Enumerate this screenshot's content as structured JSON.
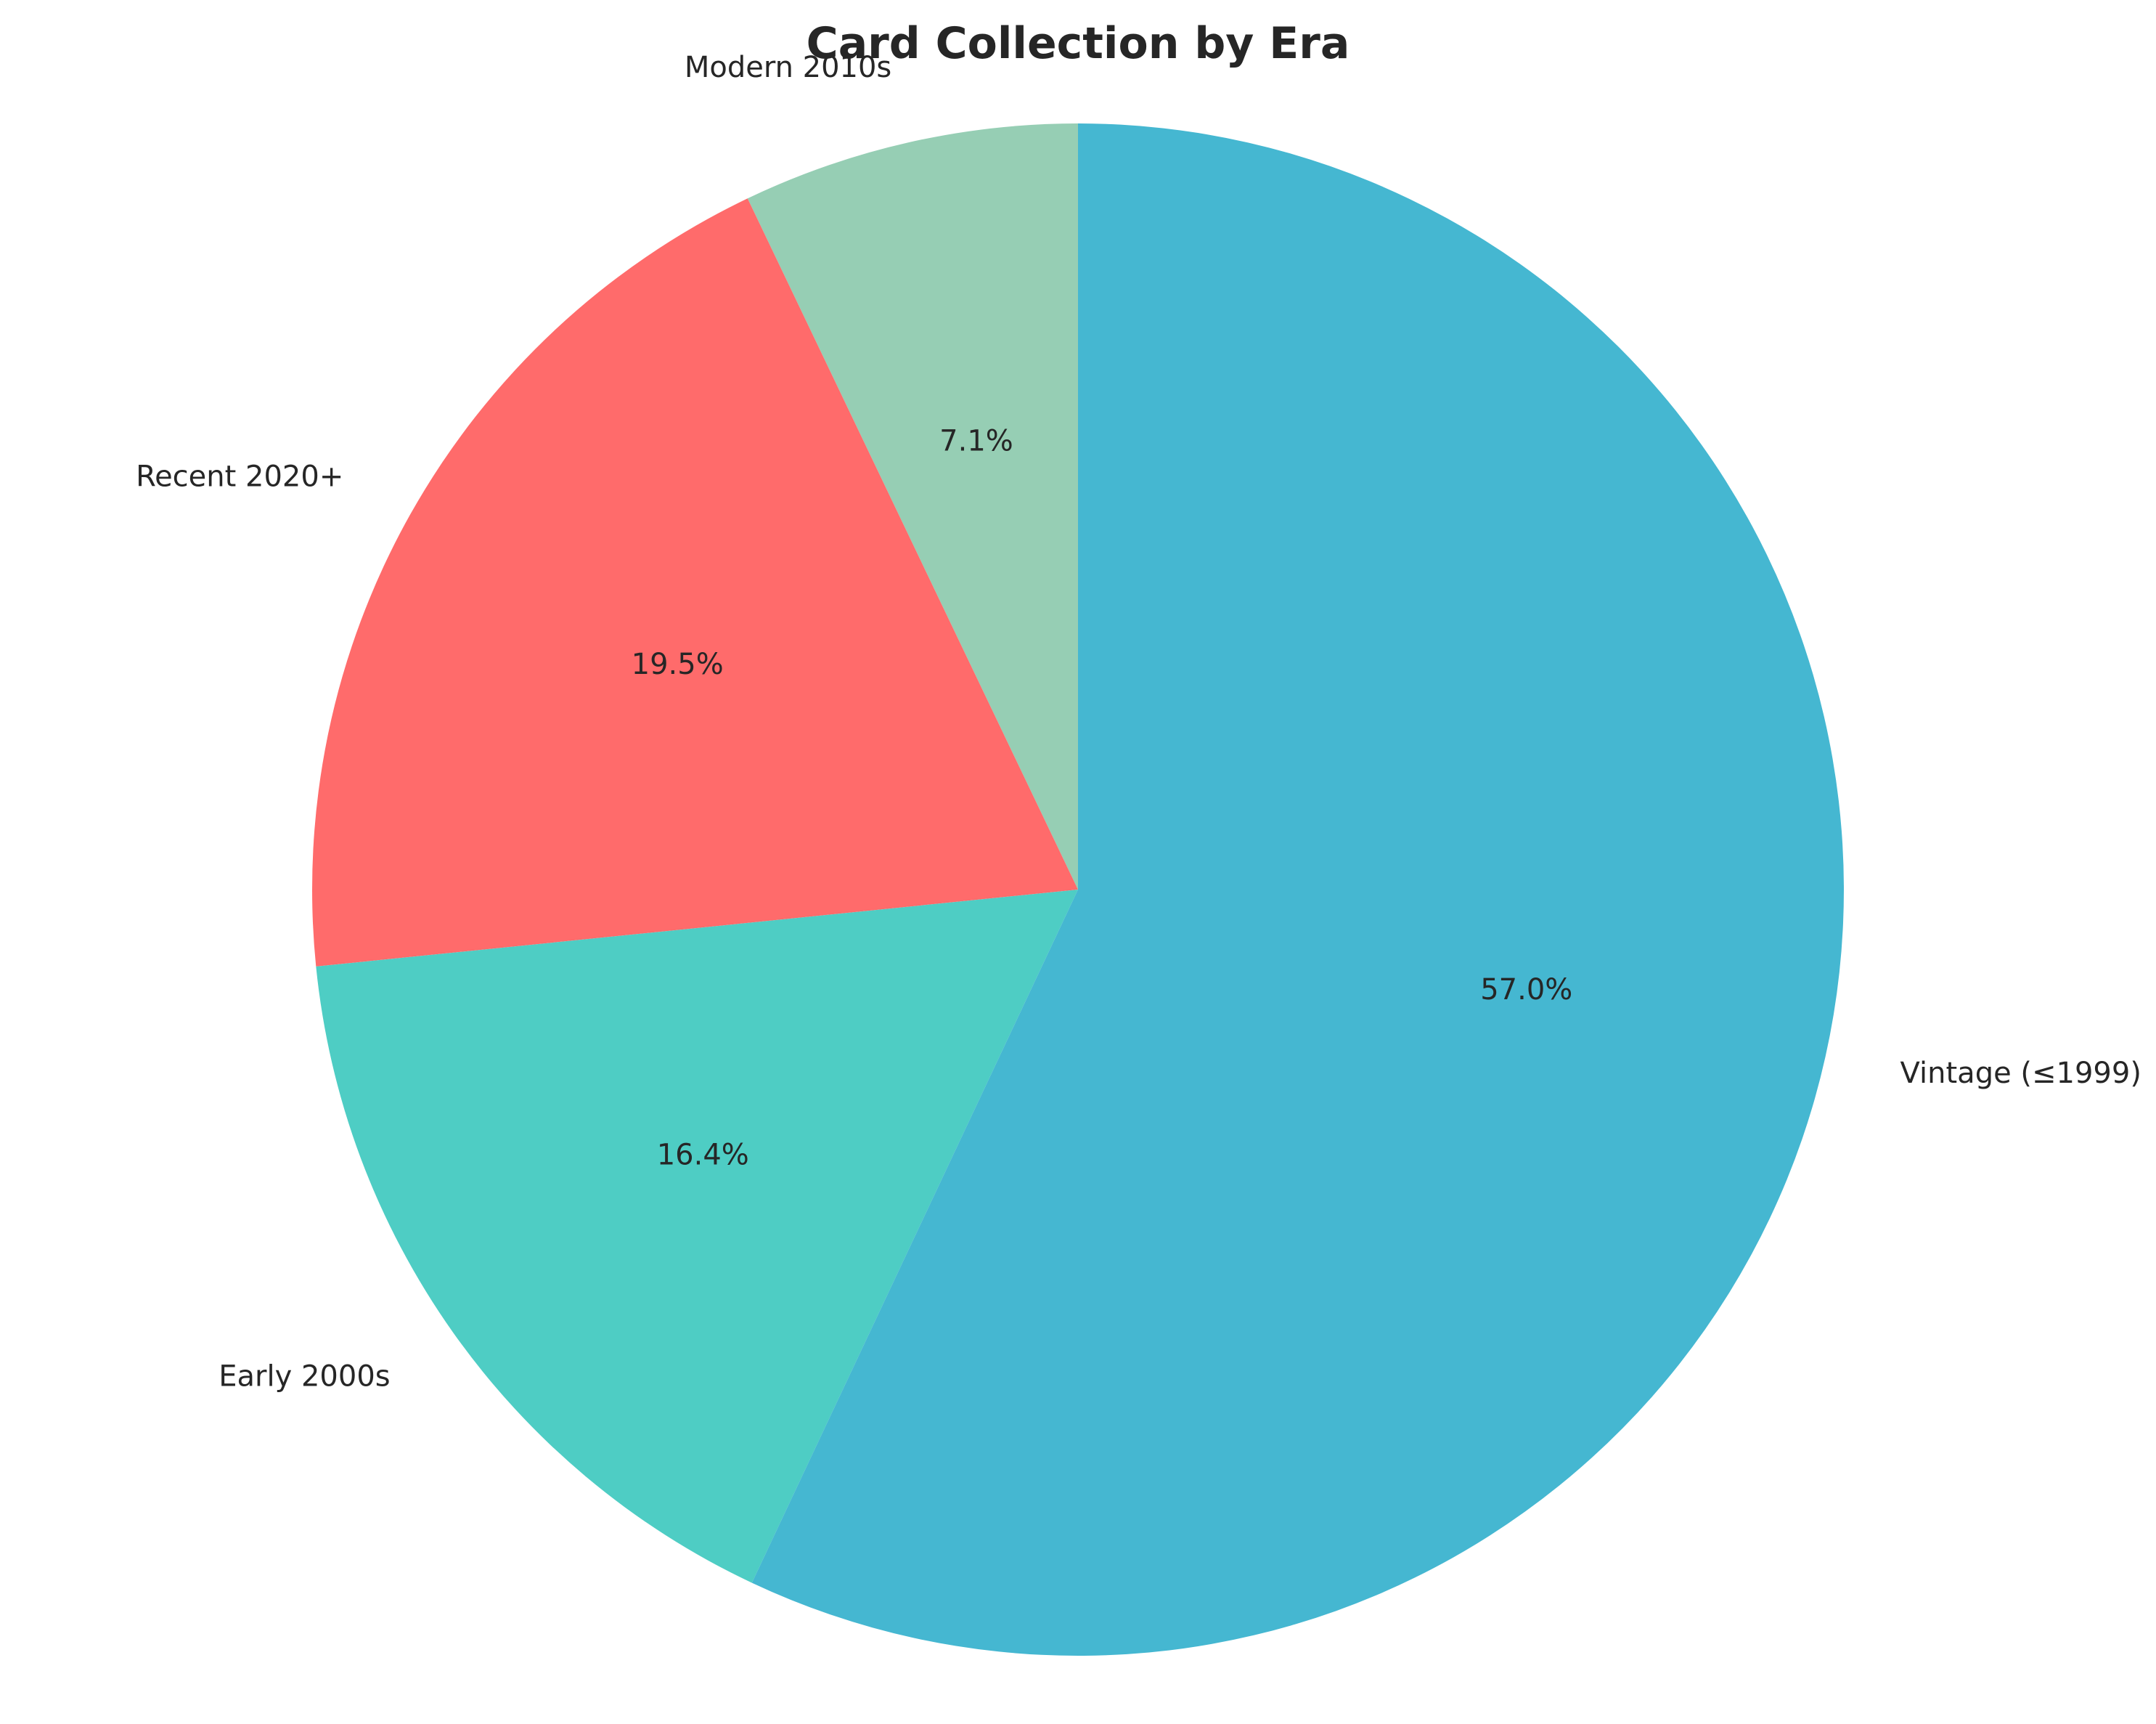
{
  "chart_data": {
    "type": "pie",
    "title": "Card Collection by Era",
    "start_angle_deg": 90,
    "direction": "counterclockwise",
    "slices": [
      {
        "label": "Modern 2010s",
        "value": 7.1,
        "pct_label": "7.1%",
        "color": "#96CEB4"
      },
      {
        "label": "Recent 2020+",
        "value": 19.5,
        "pct_label": "19.5%",
        "color": "#FF6B6B"
      },
      {
        "label": "Early 2000s",
        "value": 16.4,
        "pct_label": "16.4%",
        "color": "#4ECDC4"
      },
      {
        "label": "Vintage (≤1999)",
        "value": 57.0,
        "pct_label": "57.0%",
        "color": "#45B7D1"
      }
    ]
  }
}
